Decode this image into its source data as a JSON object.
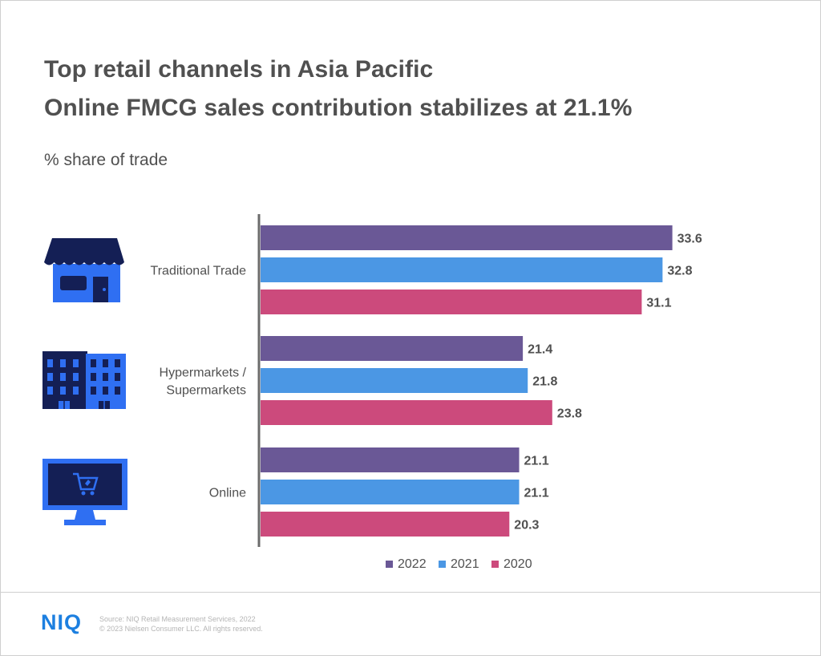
{
  "header": {
    "title_line1": "Top retail channels in Asia Pacific",
    "title_line2": "Online FMCG sales contribution stabilizes at 21.1%",
    "subtitle": "% share of trade"
  },
  "colors": {
    "series_2022": "#6a5896",
    "series_2021": "#4b97e4",
    "series_2020": "#cc4a7c",
    "icon_dark": "#141f55",
    "icon_blue": "#2f6ff2",
    "brand_blue": "#1c7fe0"
  },
  "icons": [
    "store-icon",
    "building-icon",
    "monitor-cart-icon"
  ],
  "chart_data": {
    "type": "bar",
    "orientation": "horizontal",
    "categories": [
      "Traditional Trade",
      "Hypermarkets / Supermarkets",
      "Online"
    ],
    "category_lines": [
      [
        "Traditional Trade"
      ],
      [
        "Hypermarkets /",
        "Supermarkets"
      ],
      [
        "Online"
      ]
    ],
    "series": [
      {
        "name": "2022",
        "values": [
          33.6,
          21.4,
          21.1
        ],
        "color": "#6a5896"
      },
      {
        "name": "2021",
        "values": [
          32.8,
          21.8,
          21.1
        ],
        "color": "#4b97e4"
      },
      {
        "name": "2020",
        "values": [
          31.1,
          23.8,
          20.3
        ],
        "color": "#cc4a7c"
      }
    ],
    "xlim": [
      0,
      35
    ],
    "ylabel": "% share of trade",
    "data_labels": true,
    "grid": false,
    "legend": "bottom"
  },
  "footer": {
    "logo": "NIQ",
    "source": "Source: NIQ Retail Measurement Services, 2022",
    "copyright": "© 2023 Nielsen Consumer LLC. All rights reserved."
  }
}
